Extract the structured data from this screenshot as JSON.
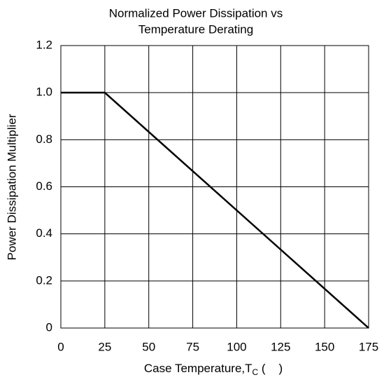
{
  "chart_data": {
    "type": "line",
    "title": [
      "Normalized Power Dissipation vs",
      "Temperature Derating"
    ],
    "xlabel": "Case Temperature,T",
    "xlabel_subscript": "C",
    "xlabel_suffix": " (    )",
    "ylabel": "Power Dissipation Multiplier",
    "x": [
      0,
      25,
      175
    ],
    "series": [
      {
        "color": "#000000",
        "values": [
          1,
          1,
          0
        ]
      }
    ],
    "xlim": [
      0,
      175
    ],
    "xticks": [
      0,
      25,
      50,
      75,
      100,
      125,
      150,
      175
    ],
    "ylim": [
      0,
      1.2
    ],
    "yticks": [
      {
        "value": 0,
        "label": "0"
      },
      0.2,
      0.4,
      0.6,
      0.8,
      {
        "value": 1,
        "label": "1.0"
      },
      1.2
    ],
    "grid": true
  }
}
